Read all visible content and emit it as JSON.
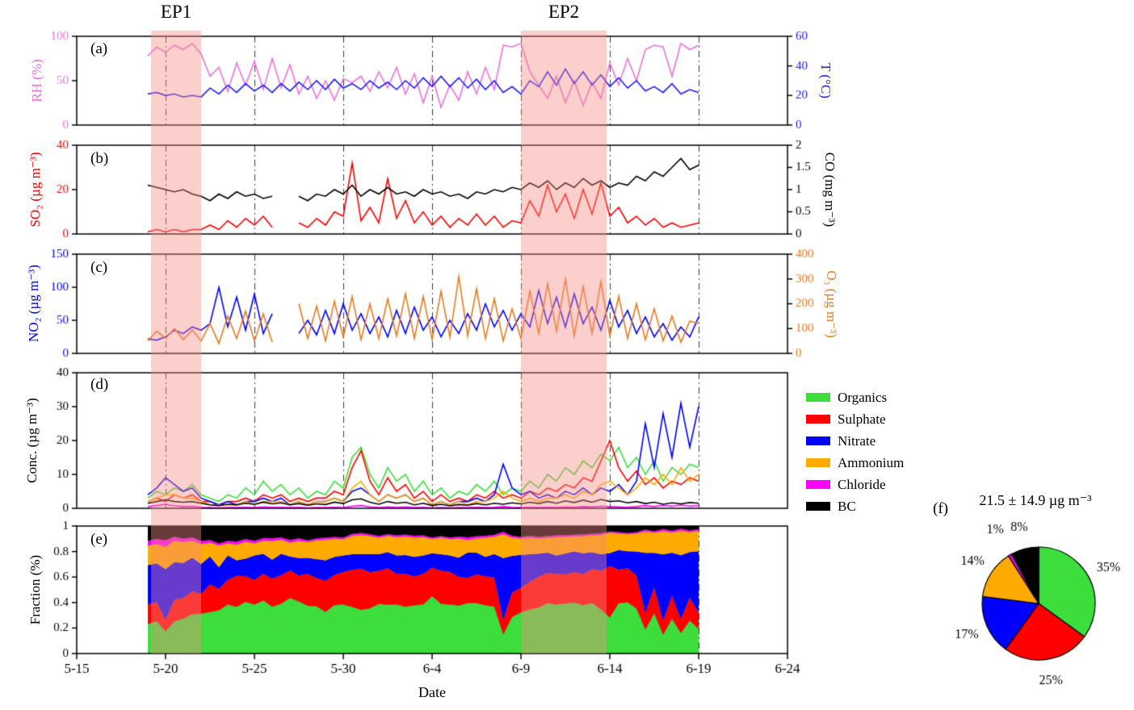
{
  "figure": {
    "ep1_label": "EP1",
    "ep2_label": "EP2",
    "panel_letters": {
      "a": "(a)",
      "b": "(b)",
      "c": "(c)",
      "d": "(d)",
      "e": "(e)",
      "f": "(f)"
    }
  },
  "chart_data": {
    "type": "multi-panel-timeseries",
    "x_unit": "days after 5-15",
    "x_start": 4.0,
    "x_step": 0.5,
    "n_points": 63,
    "x_axis": {
      "label": "Date",
      "range_days": [
        0,
        40
      ],
      "ticks": [
        0,
        5,
        10,
        15,
        20,
        25,
        30,
        35,
        40
      ],
      "tick_labels": [
        "5-15",
        "5-20",
        "5-25",
        "5-30",
        "6-4",
        "6-9",
        "6-14",
        "6-19",
        "6-24"
      ],
      "gridline_days": [
        5,
        10,
        15,
        20,
        25,
        30,
        35
      ],
      "grid_style": "dash-dot"
    },
    "ep_bands": [
      {
        "label": "EP1",
        "from_day": 4.2,
        "to_day": 7.0,
        "color": "rgba(246,141,131,0.42)"
      },
      {
        "label": "EP2",
        "from_day": 25.0,
        "to_day": 29.8,
        "color": "rgba(246,141,131,0.42)"
      }
    ],
    "panels": [
      {
        "id": "a",
        "type": "line",
        "left": {
          "title": "RH (%)",
          "color": "#E973DA",
          "min": 0,
          "max": 100,
          "ticks": [
            0,
            50,
            100
          ]
        },
        "right": {
          "title": "T (°C)",
          "color": "#1A1AFF",
          "min": 0,
          "max": 60,
          "ticks": [
            0,
            20,
            40,
            60
          ]
        },
        "series": [
          {
            "name": "RH",
            "axis": "left",
            "color": "#E973DA",
            "values": [
              78,
              88,
              82,
              90,
              85,
              92,
              80,
              55,
              65,
              38,
              70,
              45,
              72,
              40,
              75,
              42,
              68,
              35,
              55,
              30,
              50,
              28,
              52,
              48,
              55,
              38,
              60,
              42,
              65,
              35,
              58,
              25,
              55,
              20,
              45,
              28,
              60,
              35,
              65,
              40,
              90,
              88,
              92,
              60,
              45,
              30,
              55,
              25,
              50,
              22,
              48,
              30,
              70,
              45,
              75,
              50,
              85,
              90,
              88,
              55,
              92,
              85,
              90
            ]
          },
          {
            "name": "T",
            "axis": "right",
            "color": "#1A1AFF",
            "values": [
              21,
              22,
              20,
              21,
              19,
              20,
              19,
              25,
              21,
              27,
              22,
              28,
              23,
              27,
              22,
              28,
              23,
              29,
              24,
              30,
              24,
              31,
              25,
              28,
              24,
              30,
              25,
              29,
              24,
              30,
              25,
              32,
              26,
              33,
              26,
              32,
              25,
              31,
              24,
              30,
              22,
              26,
              21,
              30,
              26,
              36,
              27,
              38,
              28,
              36,
              27,
              34,
              26,
              32,
              25,
              30,
              23,
              26,
              22,
              28,
              21,
              24,
              22
            ]
          }
        ]
      },
      {
        "id": "b",
        "type": "line",
        "left": {
          "title": "SO₂ (µg m⁻³)",
          "color": "#FF0000",
          "min": 0,
          "max": 40,
          "ticks": [
            0,
            20,
            40
          ]
        },
        "right": {
          "title": "CO (mg m⁻³)",
          "color": "#000000",
          "min": 0,
          "max": 2,
          "ticks": [
            0,
            0.5,
            1,
            1.5,
            2
          ]
        },
        "series": [
          {
            "name": "SO₂",
            "axis": "left",
            "color": "#FF0000",
            "values": [
              1,
              2,
              1,
              2,
              1,
              2,
              2,
              4,
              2,
              6,
              3,
              7,
              4,
              8,
              3,
              null,
              null,
              5,
              3,
              7,
              4,
              10,
              8,
              32,
              6,
              12,
              5,
              25,
              7,
              15,
              5,
              10,
              4,
              8,
              3,
              7,
              4,
              9,
              4,
              8,
              3,
              6,
              5,
              15,
              8,
              22,
              10,
              18,
              7,
              20,
              9,
              23,
              8,
              12,
              5,
              8,
              4,
              7,
              3,
              5,
              3,
              4,
              5
            ]
          },
          {
            "name": "CO",
            "axis": "right",
            "color": "#000000",
            "values": [
              1.1,
              1.05,
              1.0,
              0.95,
              1.0,
              0.9,
              0.85,
              0.75,
              0.9,
              0.8,
              0.95,
              0.85,
              0.9,
              0.8,
              0.85,
              null,
              null,
              0.85,
              0.75,
              0.9,
              0.85,
              1.0,
              0.9,
              1.1,
              0.85,
              1.0,
              0.9,
              1.05,
              0.9,
              0.95,
              0.85,
              1.0,
              0.9,
              0.95,
              0.85,
              0.9,
              0.8,
              0.95,
              0.9,
              1.0,
              0.95,
              1.05,
              1.0,
              1.15,
              1.05,
              1.2,
              1.0,
              1.15,
              1.05,
              1.25,
              1.1,
              1.2,
              1.05,
              1.15,
              1.1,
              1.3,
              1.2,
              1.4,
              1.3,
              1.5,
              1.7,
              1.45,
              1.55
            ]
          }
        ]
      },
      {
        "id": "c",
        "type": "line",
        "left": {
          "title": "NO₂ (µg m⁻³)",
          "color": "#0000FF",
          "min": 0,
          "max": 150,
          "ticks": [
            0,
            50,
            100,
            150
          ]
        },
        "right": {
          "title": "O₃ (µg m⁻³)",
          "color": "#E87A1E",
          "min": 0,
          "max": 400,
          "ticks": [
            0,
            100,
            200,
            300,
            400
          ]
        },
        "series": [
          {
            "name": "NO₂",
            "axis": "left",
            "color": "#0000FF",
            "values": [
              22,
              20,
              25,
              35,
              30,
              40,
              35,
              45,
              100,
              40,
              85,
              35,
              90,
              30,
              60,
              null,
              null,
              30,
              50,
              28,
              65,
              30,
              75,
              35,
              60,
              30,
              55,
              25,
              65,
              30,
              70,
              35,
              55,
              25,
              50,
              30,
              60,
              35,
              75,
              40,
              65,
              35,
              60,
              40,
              95,
              45,
              85,
              40,
              90,
              45,
              70,
              35,
              80,
              40,
              65,
              30,
              55,
              25,
              45,
              20,
              40,
              25,
              55
            ]
          },
          {
            "name": "O₃",
            "axis": "right",
            "color": "#E87A1E",
            "values": [
              50,
              90,
              60,
              100,
              55,
              95,
              50,
              120,
              40,
              150,
              60,
              170,
              50,
              160,
              45,
              null,
              null,
              200,
              60,
              190,
              50,
              210,
              65,
              230,
              55,
              200,
              60,
              220,
              70,
              240,
              60,
              230,
              55,
              250,
              65,
              310,
              70,
              260,
              60,
              220,
              50,
              180,
              60,
              250,
              80,
              280,
              90,
              300,
              70,
              270,
              80,
              290,
              70,
              230,
              60,
              200,
              55,
              180,
              50,
              150,
              45,
              130,
              120
            ]
          }
        ]
      },
      {
        "id": "d",
        "type": "line",
        "left": {
          "title": "Conc. (µg m⁻³)",
          "color": "#000000",
          "min": 0,
          "max": 40,
          "ticks": [
            0,
            10,
            20,
            30,
            40
          ]
        },
        "series": [
          {
            "name": "Organics",
            "axis": "left",
            "color": "#3CDE3C",
            "values": [
              3,
              5,
              4,
              6,
              5,
              7,
              4,
              3,
              2,
              4,
              3,
              6,
              4,
              8,
              5,
              7,
              4,
              6,
              3,
              5,
              4,
              8,
              6,
              15,
              18,
              10,
              6,
              12,
              8,
              10,
              5,
              8,
              4,
              6,
              3,
              5,
              4,
              7,
              5,
              8,
              4,
              6,
              5,
              8,
              6,
              10,
              8,
              12,
              10,
              14,
              12,
              16,
              14,
              18,
              12,
              15,
              10,
              14,
              8,
              12,
              10,
              13,
              12
            ]
          },
          {
            "name": "Sulphate",
            "axis": "left",
            "color": "#FF0000",
            "values": [
              2,
              3,
              2,
              4,
              3,
              4,
              2,
              2,
              1,
              2,
              2,
              3,
              2,
              4,
              3,
              4,
              2,
              3,
              2,
              3,
              3,
              5,
              4,
              12,
              17,
              8,
              4,
              9,
              5,
              7,
              3,
              5,
              2,
              4,
              2,
              3,
              2,
              4,
              3,
              5,
              3,
              4,
              3,
              5,
              4,
              6,
              5,
              7,
              6,
              9,
              8,
              14,
              20,
              12,
              8,
              11,
              7,
              9,
              6,
              8,
              7,
              9,
              8
            ]
          },
          {
            "name": "Nitrate",
            "axis": "left",
            "color": "#0000FF",
            "values": [
              4,
              6,
              9,
              7,
              5,
              6,
              3,
              2,
              1,
              2,
              1,
              2,
              2,
              3,
              2,
              3,
              1,
              2,
              1,
              2,
              2,
              3,
              2,
              5,
              6,
              4,
              2,
              4,
              3,
              4,
              2,
              3,
              1,
              2,
              1,
              2,
              2,
              3,
              2,
              4,
              13,
              6,
              4,
              5,
              3,
              4,
              3,
              5,
              4,
              6,
              4,
              6,
              5,
              7,
              4,
              8,
              25,
              12,
              28,
              15,
              31,
              18,
              30
            ]
          },
          {
            "name": "Ammonium",
            "axis": "left",
            "color": "#FFAA00",
            "values": [
              2,
              3,
              4,
              4,
              3,
              3,
              2,
              1,
              1,
              1,
              1,
              2,
              1,
              2,
              2,
              2,
              1,
              2,
              1,
              2,
              2,
              3,
              2,
              6,
              8,
              4,
              2,
              4,
              3,
              4,
              2,
              3,
              1,
              2,
              1,
              2,
              1,
              2,
              2,
              3,
              5,
              3,
              2,
              3,
              2,
              3,
              3,
              4,
              3,
              5,
              4,
              7,
              8,
              6,
              4,
              6,
              9,
              7,
              10,
              7,
              12,
              8,
              10
            ]
          },
          {
            "name": "Chloride",
            "axis": "left",
            "color": "#FF00FF",
            "values": [
              0.5,
              0.8,
              1.2,
              0.7,
              0.5,
              0.6,
              0.3,
              0.2,
              0.1,
              0.2,
              0.2,
              0.3,
              0.2,
              0.4,
              0.3,
              0.3,
              0.2,
              0.3,
              0.1,
              0.2,
              0.2,
              0.3,
              0.2,
              0.6,
              0.8,
              0.4,
              0.2,
              0.4,
              0.3,
              0.4,
              0.2,
              0.3,
              0.1,
              0.2,
              0.1,
              0.2,
              0.2,
              0.3,
              0.2,
              0.3,
              0.5,
              0.3,
              0.2,
              0.3,
              0.2,
              0.3,
              0.3,
              0.4,
              0.3,
              0.5,
              0.4,
              0.6,
              0.5,
              0.4,
              0.3,
              0.5,
              0.8,
              0.5,
              0.9,
              0.6,
              1.0,
              0.6,
              0.8
            ]
          },
          {
            "name": "BC",
            "axis": "left",
            "color": "#000000",
            "values": [
              1.5,
              2.0,
              2.5,
              2.0,
              1.8,
              2.0,
              1.5,
              1.0,
              0.8,
              1.2,
              1.0,
              1.5,
              1.2,
              1.8,
              1.3,
              1.6,
              1.0,
              1.4,
              0.9,
              1.3,
              1.1,
              1.8,
              1.4,
              2.5,
              2.8,
              1.8,
              1.2,
              2.0,
              1.5,
              1.8,
              1.0,
              1.5,
              0.8,
              1.2,
              0.7,
              1.1,
              0.9,
              1.4,
              1.0,
              1.5,
              1.2,
              1.6,
              1.3,
              1.8,
              1.4,
              2.0,
              1.5,
              2.2,
              1.7,
              2.4,
              1.8,
              2.6,
              2.0,
              2.2,
              1.6,
              2.0,
              1.4,
              1.8,
              1.2,
              1.6,
              1.3,
              1.7,
              1.5
            ]
          }
        ]
      },
      {
        "id": "e",
        "type": "stacked-fraction",
        "stack_from": "d",
        "left": {
          "title": "Fraction (%)",
          "color": "#000000",
          "min": 0,
          "max": 1,
          "ticks": [
            0,
            0.2,
            0.4,
            0.6,
            0.8,
            1
          ]
        }
      }
    ],
    "pie": {
      "type": "pie",
      "title": "21.5 ± 14.9 µg m⁻³",
      "slices": [
        {
          "label": "Organics",
          "pct": 35,
          "color": "#3CDE3C"
        },
        {
          "label": "Sulphate",
          "pct": 25,
          "color": "#FF0000"
        },
        {
          "label": "Nitrate",
          "pct": 17,
          "color": "#0000FF"
        },
        {
          "label": "Ammonium",
          "pct": 14,
          "color": "#FFAA00"
        },
        {
          "label": "Chloride",
          "pct": 1,
          "color": "#FF00FF"
        },
        {
          "label": "BC",
          "pct": 8,
          "color": "#000000"
        }
      ]
    }
  }
}
